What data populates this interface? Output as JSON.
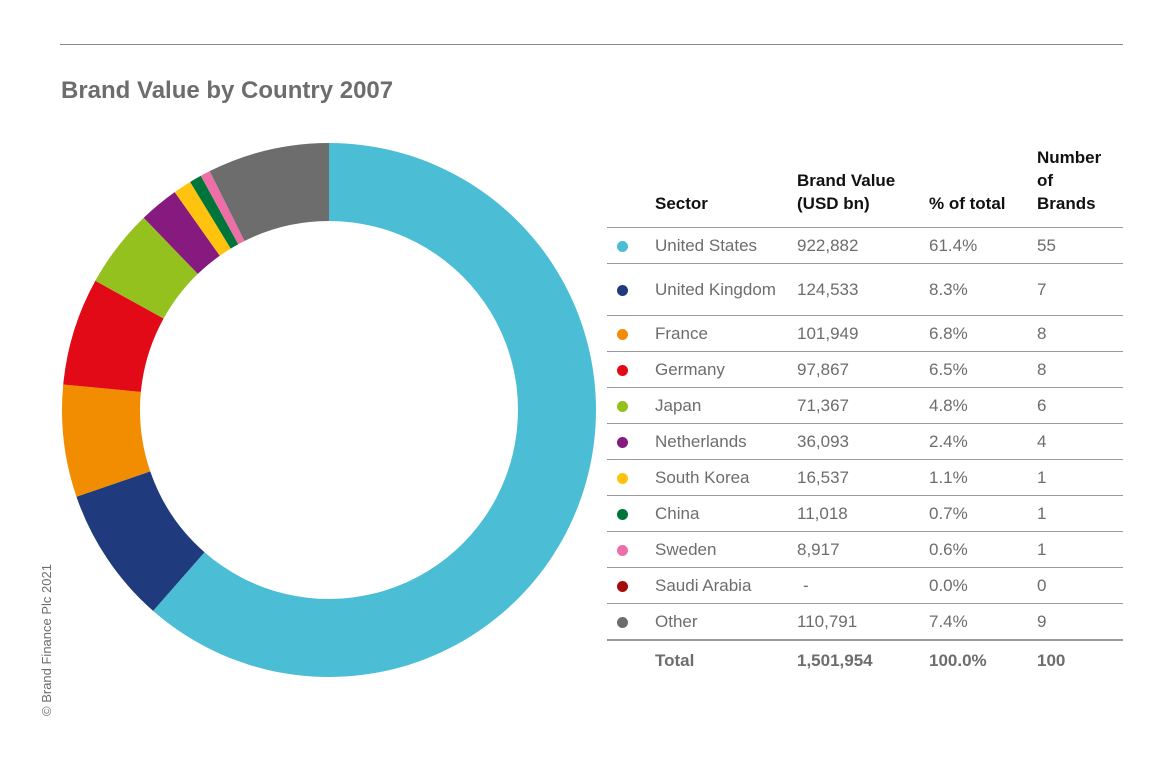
{
  "title": "Brand Value by Country 2007",
  "copyright": "© Brand Finance Plc 2021",
  "table": {
    "headers": [
      "Sector",
      "Brand Value (USD bn)",
      "% of total",
      "Number of Brands"
    ],
    "total": {
      "label": "Total",
      "value": "1,501,954",
      "pct": "100.0%",
      "brands": "100"
    }
  },
  "chart_data": {
    "type": "pie",
    "title": "Brand Value by Country 2007",
    "donut": true,
    "slices": [
      {
        "label": "United States",
        "value_display": "922,882",
        "value": 922882,
        "pct_display": "61.4%",
        "pct": 61.4,
        "brands": "55",
        "color": "#4bbdd4"
      },
      {
        "label": "United Kingdom",
        "value_display": "124,533",
        "value": 124533,
        "pct_display": "8.3%",
        "pct": 8.3,
        "brands": "7",
        "color": "#1f3b7d"
      },
      {
        "label": "France",
        "value_display": "101,949",
        "value": 101949,
        "pct_display": "6.8%",
        "pct": 6.8,
        "brands": "8",
        "color": "#f28c00"
      },
      {
        "label": "Germany",
        "value_display": "97,867",
        "value": 97867,
        "pct_display": "6.5%",
        "pct": 6.5,
        "brands": "8",
        "color": "#e20a17"
      },
      {
        "label": "Japan",
        "value_display": "71,367",
        "value": 71367,
        "pct_display": "4.8%",
        "pct": 4.8,
        "brands": "6",
        "color": "#95c11f"
      },
      {
        "label": "Netherlands",
        "value_display": "36,093",
        "value": 36093,
        "pct_display": "2.4%",
        "pct": 2.4,
        "brands": "4",
        "color": "#861a7f"
      },
      {
        "label": "South Korea",
        "value_display": "16,537",
        "value": 16537,
        "pct_display": "1.1%",
        "pct": 1.1,
        "brands": "1",
        "color": "#ffc20e"
      },
      {
        "label": "China",
        "value_display": "11,018",
        "value": 11018,
        "pct_display": "0.7%",
        "pct": 0.7,
        "brands": "1",
        "color": "#00753a"
      },
      {
        "label": "Sweden",
        "value_display": "8,917",
        "value": 8917,
        "pct_display": "0.6%",
        "pct": 0.6,
        "brands": "1",
        "color": "#ee6fa8"
      },
      {
        "label": "Saudi Arabia",
        "value_display": "-",
        "value": 0,
        "pct_display": "0.0%",
        "pct": 0.0,
        "brands": "0",
        "color": "#a50d0d"
      },
      {
        "label": "Other",
        "value_display": "110,791",
        "value": 110791,
        "pct_display": "7.4%",
        "pct": 7.4,
        "brands": "9",
        "color": "#6d6d6d"
      }
    ]
  }
}
